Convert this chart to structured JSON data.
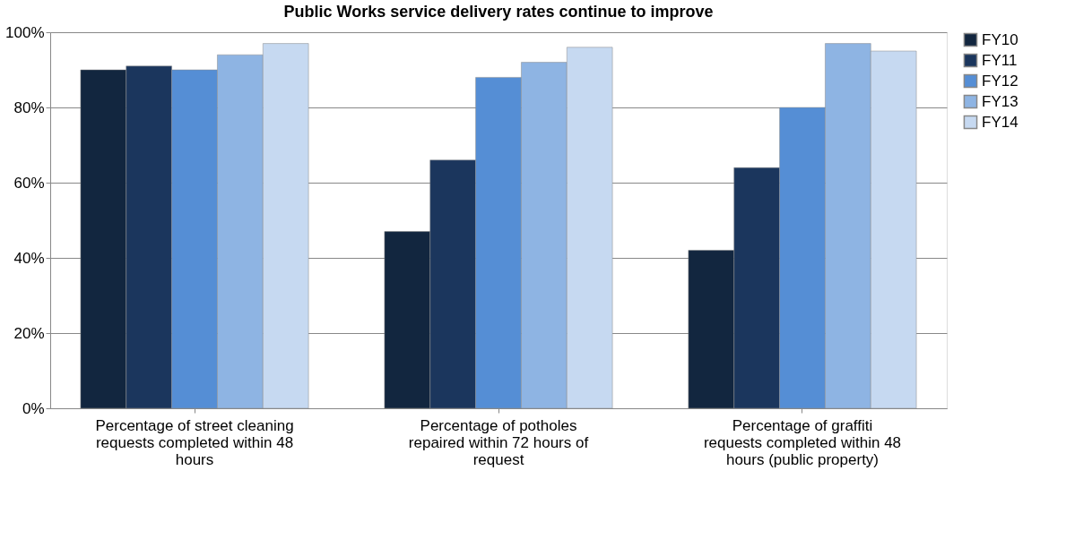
{
  "chart_data": {
    "type": "bar",
    "title": "Public Works service delivery rates continue to improve",
    "categories": [
      "Percentage of street cleaning requests completed within 48 hours",
      "Percentage of potholes repaired within 72 hours of request",
      "Percentage of graffiti requests completed within 48 hours (public property)"
    ],
    "series": [
      {
        "name": "FY10",
        "color": "#12263f",
        "values": [
          90,
          47,
          42
        ]
      },
      {
        "name": "FY11",
        "color": "#1b365d",
        "values": [
          91,
          66,
          64
        ]
      },
      {
        "name": "FY12",
        "color": "#558ed5",
        "values": [
          90,
          88,
          80
        ]
      },
      {
        "name": "FY13",
        "color": "#8eb4e3",
        "values": [
          94,
          92,
          97
        ]
      },
      {
        "name": "FY14",
        "color": "#c6d9f1",
        "values": [
          97,
          96,
          95
        ]
      }
    ],
    "ylim": [
      0,
      100
    ],
    "yticks": [
      {
        "value": 0,
        "label": "0%"
      },
      {
        "value": 20,
        "label": "20%"
      },
      {
        "value": 40,
        "label": "40%"
      },
      {
        "value": 60,
        "label": "60%"
      },
      {
        "value": 80,
        "label": "80%"
      },
      {
        "value": 100,
        "label": "100%"
      }
    ],
    "grid": "y",
    "legend": "right"
  }
}
